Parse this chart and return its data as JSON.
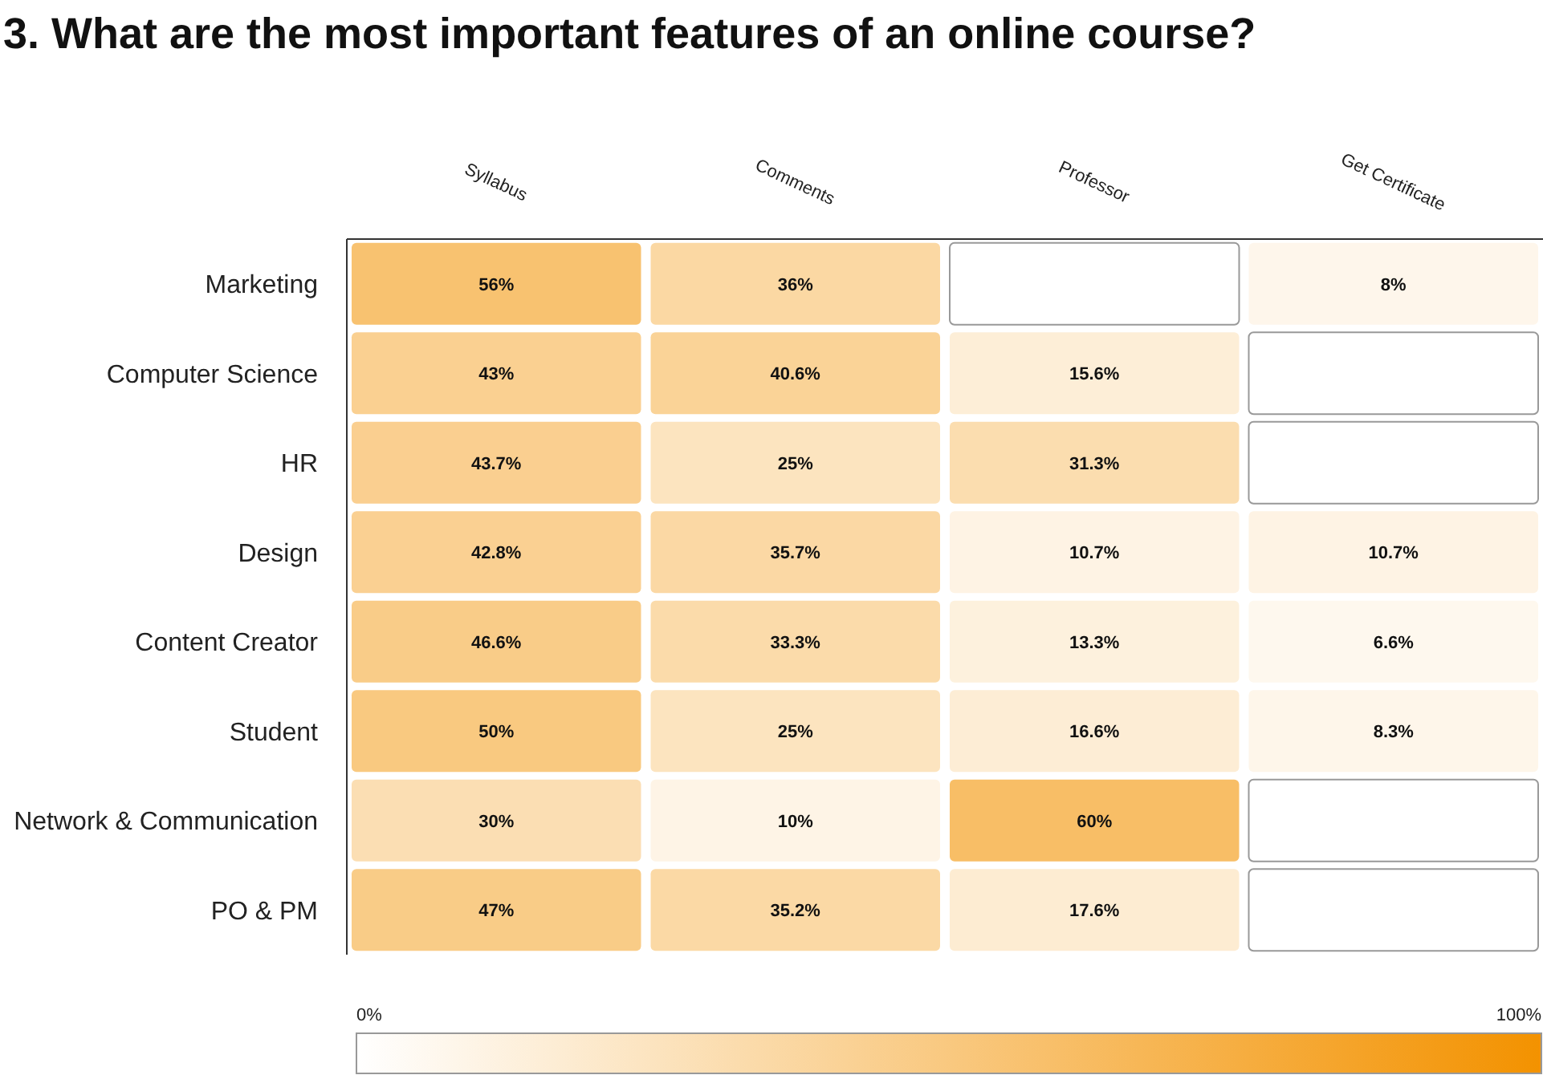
{
  "chart_data": {
    "type": "heatmap",
    "title": "3.  What are the most important features of an online course?",
    "categories": [
      "Syllabus",
      "Comments",
      "Professor",
      "Get Certificate"
    ],
    "y_categories": [
      "Marketing",
      "Computer Science",
      "HR",
      "Design",
      "Content Creator",
      "Student",
      "Network & Communication",
      "PO & PM"
    ],
    "cells": [
      [
        56,
        36,
        null,
        8
      ],
      [
        43,
        40.6,
        15.6,
        null
      ],
      [
        43.7,
        25,
        31.3,
        null
      ],
      [
        42.8,
        35.7,
        10.7,
        10.7
      ],
      [
        46.6,
        33.3,
        13.3,
        6.6
      ],
      [
        50,
        25,
        16.6,
        8.3
      ],
      [
        30,
        10,
        60,
        null
      ],
      [
        47,
        35.2,
        17.6,
        null
      ]
    ],
    "cell_labels": [
      [
        "56%",
        "36%",
        null,
        "8%"
      ],
      [
        "43%",
        "40.6%",
        "15.6%",
        null
      ],
      [
        "43.7%",
        "25%",
        "31.3%",
        null
      ],
      [
        "42.8%",
        "35.7%",
        "10.7%",
        "10.7%"
      ],
      [
        "46.6%",
        "33.3%",
        "13.3%",
        "6.6%"
      ],
      [
        "50%",
        "25%",
        "16.6%",
        "8.3%"
      ],
      [
        "30%",
        "10%",
        "60%",
        null
      ],
      [
        "47%",
        "35.2%",
        "17.6%",
        null
      ]
    ],
    "clim": [
      0,
      100
    ],
    "cticks": [
      {
        "value": 0,
        "label": "0%"
      },
      {
        "value": 100,
        "label": "100%"
      }
    ]
  }
}
